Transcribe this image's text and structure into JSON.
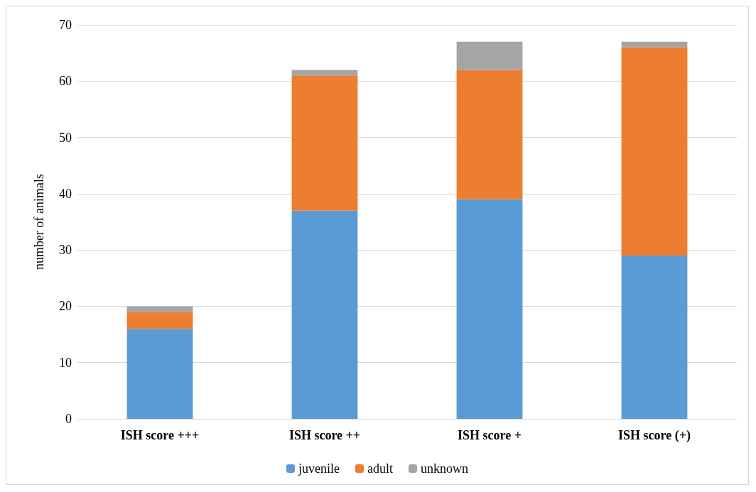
{
  "chart_data": {
    "type": "bar",
    "stacked": true,
    "ylabel": "number of animals",
    "categories": [
      "ISH score +++",
      "ISH score ++",
      "ISH score +",
      "ISH score (+)"
    ],
    "series": [
      {
        "name": "juvenile",
        "color": "#5b9bd5",
        "values": [
          16,
          37,
          39,
          29
        ]
      },
      {
        "name": "adult",
        "color": "#ed7d31",
        "values": [
          3,
          24,
          23,
          37
        ]
      },
      {
        "name": "unknown",
        "color": "#a5a5a5",
        "values": [
          1,
          1,
          5,
          1
        ]
      }
    ],
    "ylim": [
      0,
      70
    ],
    "yticks": [
      0,
      10,
      20,
      30,
      40,
      50,
      60,
      70
    ],
    "grid": "y",
    "legend": "bottom"
  }
}
